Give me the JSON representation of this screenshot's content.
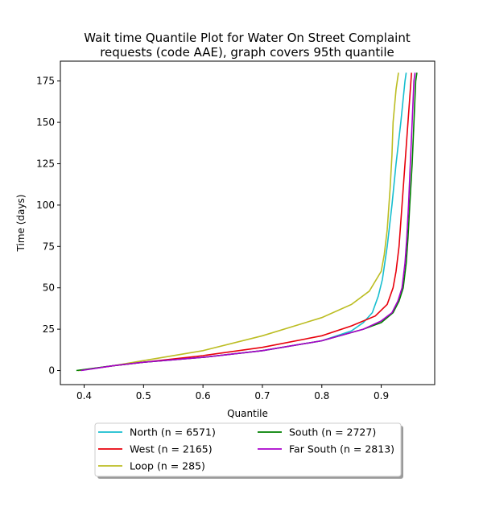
{
  "chart_data": {
    "type": "line",
    "title": [
      "Wait time Quantile Plot for Water On Street Complaint",
      "requests (code AAE), graph covers 95th quantile"
    ],
    "xlabel": "Quantile",
    "ylabel": "Time (days)",
    "xlim": [
      0.36,
      0.99
    ],
    "ylim": [
      -8.5,
      187
    ],
    "xticks": [
      0.4,
      0.5,
      0.6,
      0.7,
      0.8,
      0.9
    ],
    "xtick_labels": [
      "0.4",
      "0.5",
      "0.6",
      "0.7",
      "0.8",
      "0.9"
    ],
    "yticks": [
      0,
      25,
      50,
      75,
      100,
      125,
      150,
      175
    ],
    "ytick_labels": [
      "0",
      "25",
      "50",
      "75",
      "100",
      "125",
      "150",
      "175"
    ],
    "grid": false,
    "legend_position": "below-center",
    "series": [
      {
        "name": "North (n = 6571)",
        "color": "#17becf",
        "points": [
          [
            0.393,
            0
          ],
          [
            0.45,
            3
          ],
          [
            0.5,
            5
          ],
          [
            0.6,
            8
          ],
          [
            0.7,
            12
          ],
          [
            0.8,
            18
          ],
          [
            0.85,
            24
          ],
          [
            0.87,
            29
          ],
          [
            0.885,
            35
          ],
          [
            0.895,
            45
          ],
          [
            0.902,
            55
          ],
          [
            0.91,
            75
          ],
          [
            0.918,
            100
          ],
          [
            0.925,
            125
          ],
          [
            0.933,
            150
          ],
          [
            0.94,
            175
          ],
          [
            0.942,
            180
          ]
        ]
      },
      {
        "name": "West (n = 2165)",
        "color": "#e8000b",
        "points": [
          [
            0.39,
            0
          ],
          [
            0.45,
            3
          ],
          [
            0.5,
            5
          ],
          [
            0.6,
            9
          ],
          [
            0.7,
            14
          ],
          [
            0.8,
            21
          ],
          [
            0.85,
            27
          ],
          [
            0.89,
            33
          ],
          [
            0.91,
            40
          ],
          [
            0.92,
            50
          ],
          [
            0.925,
            60
          ],
          [
            0.93,
            75
          ],
          [
            0.935,
            100
          ],
          [
            0.94,
            125
          ],
          [
            0.945,
            150
          ],
          [
            0.95,
            175
          ],
          [
            0.951,
            180
          ]
        ]
      },
      {
        "name": "Loop (n = 285)",
        "color": "#bcbd22",
        "points": [
          [
            0.39,
            0
          ],
          [
            0.45,
            3
          ],
          [
            0.5,
            6
          ],
          [
            0.6,
            12
          ],
          [
            0.7,
            21
          ],
          [
            0.8,
            32
          ],
          [
            0.85,
            40
          ],
          [
            0.88,
            48
          ],
          [
            0.9,
            60
          ],
          [
            0.905,
            70
          ],
          [
            0.91,
            85
          ],
          [
            0.915,
            110
          ],
          [
            0.918,
            130
          ],
          [
            0.92,
            150
          ],
          [
            0.925,
            170
          ],
          [
            0.929,
            180
          ]
        ]
      },
      {
        "name": "South (n = 2727)",
        "color": "#008000",
        "points": [
          [
            0.387,
            0
          ],
          [
            0.45,
            3
          ],
          [
            0.5,
            5
          ],
          [
            0.6,
            8
          ],
          [
            0.7,
            12
          ],
          [
            0.8,
            18
          ],
          [
            0.87,
            25
          ],
          [
            0.9,
            29
          ],
          [
            0.92,
            35
          ],
          [
            0.93,
            42
          ],
          [
            0.937,
            50
          ],
          [
            0.942,
            65
          ],
          [
            0.945,
            80
          ],
          [
            0.948,
            100
          ],
          [
            0.952,
            125
          ],
          [
            0.955,
            150
          ],
          [
            0.958,
            175
          ],
          [
            0.96,
            180
          ]
        ]
      },
      {
        "name": "Far South (n = 2813)",
        "color": "#aa00cc",
        "points": [
          [
            0.395,
            0
          ],
          [
            0.45,
            3
          ],
          [
            0.5,
            5
          ],
          [
            0.6,
            8
          ],
          [
            0.7,
            12
          ],
          [
            0.8,
            18
          ],
          [
            0.87,
            25
          ],
          [
            0.9,
            30
          ],
          [
            0.918,
            35
          ],
          [
            0.928,
            42
          ],
          [
            0.935,
            50
          ],
          [
            0.94,
            65
          ],
          [
            0.943,
            80
          ],
          [
            0.946,
            100
          ],
          [
            0.949,
            125
          ],
          [
            0.952,
            150
          ],
          [
            0.955,
            175
          ],
          [
            0.957,
            180
          ]
        ]
      }
    ],
    "legend_order": [
      0,
      1,
      2,
      3,
      4
    ]
  }
}
